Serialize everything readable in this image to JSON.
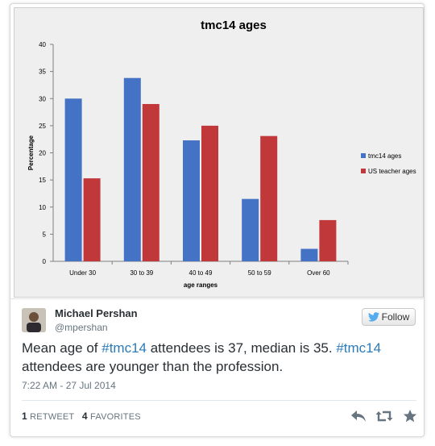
{
  "chart_data": {
    "type": "bar",
    "title": "tmc14 ages",
    "xlabel": "age ranges",
    "ylabel": "Percentage",
    "categories": [
      "Under 30",
      "30 to 39",
      "40 to 49",
      "50 to 59",
      "Over 60"
    ],
    "series": [
      {
        "name": "tmc14 ages",
        "values": [
          30,
          33.8,
          22.3,
          11.5,
          2.3
        ],
        "color": "#4472c4"
      },
      {
        "name": "US teacher ages",
        "values": [
          15.3,
          29,
          25,
          23.1,
          7.6
        ],
        "color": "#c0383a"
      }
    ],
    "ylim": [
      0,
      40
    ],
    "yticks": [
      0,
      5,
      10,
      15,
      20,
      25,
      30,
      35,
      40
    ],
    "grid": false,
    "legend": "right"
  },
  "tweet": {
    "user_name": "Michael Pershan",
    "handle": "@mpershan",
    "follow_label": "Follow",
    "text": {
      "p1": "Mean age of ",
      "h1": "#tmc14",
      "p2": " attendees is 37, median is 35. ",
      "h2": "#tmc14",
      "p3": " attendees are younger than the profession."
    },
    "timestamp": "7:22 AM - 27 Jul 2014",
    "retweet_count": "1",
    "retweet_label": "RETWEET",
    "favorite_count": "4",
    "favorite_label": "FAVORITES"
  },
  "icons": {
    "follow": "twitter-bird-icon",
    "reply": "reply-icon",
    "retweet": "retweet-icon",
    "favorite": "star-icon"
  },
  "colors": {
    "hashtag": "#2b7bb9",
    "twitter_blue": "#55acee",
    "action_gray": "#66757f"
  }
}
